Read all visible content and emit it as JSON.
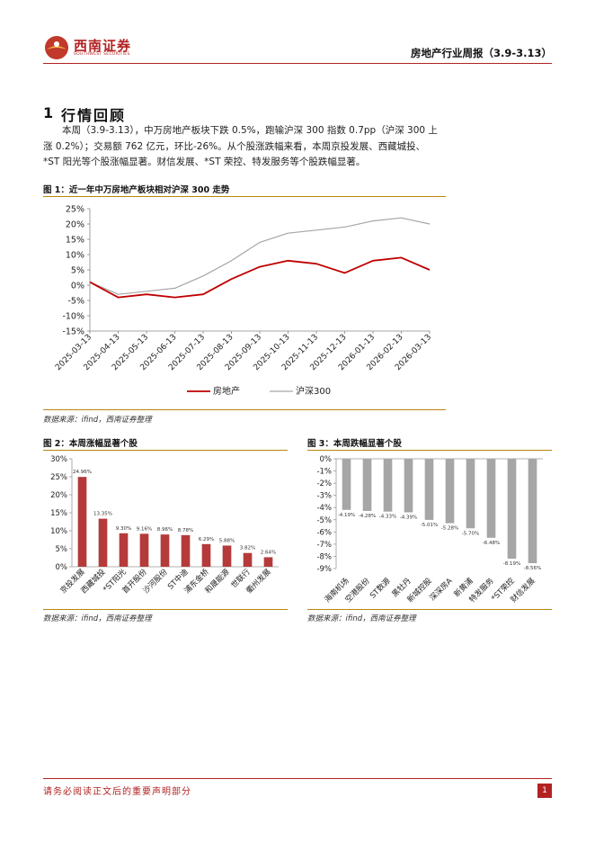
{
  "header": {
    "brand_name": "西南证券",
    "brand_sub": "SOUTHWEST SECURITIES",
    "report_title": "房地产行业周报（3.9-3.13）"
  },
  "section": {
    "number": "1",
    "title": "行情回顾"
  },
  "paragraph": {
    "line1": "本周（3.9-3.13），中万房地产板块下跌 0.5%，跑输沪深 300 指数 0.7pp（沪深 300 上",
    "line2": "涨 0.2%）；交易额 762 亿元，环比-26%。从个股涨跌幅来看，本周京投发展、西藏城投、",
    "line3": "*ST 阳光等个股涨幅显著。财信发展、*ST 荣控、特发服务等个股跌幅显著。"
  },
  "figure1": {
    "title": "图 1：近一年中万房地产板块相对沪深 300 走势",
    "source": "数据来源：ifind，西南证券整理"
  },
  "figure2": {
    "title": "图 2：本周涨幅显著个股",
    "source": "数据来源：ifind，西南证券整理"
  },
  "figure3": {
    "title": "图 3：本周跌幅显著个股",
    "source": "数据来源：ifind，西南证券整理"
  },
  "footer": {
    "disclaimer": "请务必阅读正文后的重要声明部分",
    "page": "1"
  },
  "colors": {
    "brand_red": "#b22222",
    "bar_red": "#b53a3a",
    "bar_grey": "#a6a6a6",
    "line_red": "#c00000",
    "line_grey": "#a6a6a6",
    "rule_gold": "#b8860b"
  },
  "chart_data": [
    {
      "type": "line",
      "x": [
        "2025-03-13",
        "2025-04-13",
        "2025-05-13",
        "2025-06-13",
        "2025-07-13",
        "2025-08-13",
        "2025-09-13",
        "2025-10-13",
        "2025-11-13",
        "2025-12-13",
        "2026-01-13",
        "2026-02-13",
        "2026-03-13"
      ],
      "series": [
        {
          "name": "房地产",
          "values": [
            1,
            -4,
            -3,
            -4,
            -3,
            2,
            6,
            8,
            7,
            4,
            8,
            9,
            5
          ]
        },
        {
          "name": "沪深300",
          "values": [
            1,
            -3,
            -2,
            -1,
            3,
            8,
            14,
            17,
            18,
            19,
            21,
            22,
            20
          ]
        }
      ],
      "yticks": [
        "25%",
        "20%",
        "15%",
        "10%",
        "5%",
        "0%",
        "-5%",
        "-10%",
        "-15%"
      ],
      "ylim": [
        -15,
        25
      ],
      "legend": "bottom",
      "grid": false
    },
    {
      "type": "bar",
      "categories": [
        "京投发展",
        "西藏城投",
        "*ST阳光",
        "首开股份",
        "沙河股份",
        "ST中迪",
        "浦东金桥",
        "和晟能源",
        "世联行",
        "衢州发展"
      ],
      "values": [
        24.96,
        13.35,
        9.3,
        9.16,
        8.96,
        8.78,
        6.29,
        5.88,
        3.82,
        2.64
      ],
      "labels": [
        "24.96%",
        "13.35%",
        "9.30%",
        "9.16%",
        "8.96%",
        "8.78%",
        "6.29%",
        "5.88%",
        "3.82%",
        "2.64%"
      ],
      "yticks": [
        "30%",
        "25%",
        "20%",
        "15%",
        "10%",
        "5%",
        "0%"
      ],
      "ylim": [
        0,
        30
      ]
    },
    {
      "type": "bar",
      "categories": [
        "海南机场",
        "空港股份",
        "ST数源",
        "黑牡丹",
        "新城控股",
        "深深房A",
        "新黄浦",
        "特发服务",
        "*ST荣控",
        "财信发展"
      ],
      "values": [
        -4.19,
        -4.28,
        -4.33,
        -4.39,
        -5.01,
        -5.28,
        -5.7,
        -6.48,
        -8.19,
        -8.56
      ],
      "labels": [
        "-4.19%",
        "-4.28%",
        "-4.33%",
        "-4.39%",
        "-5.01%",
        "-5.28%",
        "-5.70%",
        "-6.48%",
        "-8.19%",
        "-8.56%"
      ],
      "yticks": [
        "0%",
        "-1%",
        "-2%",
        "-3%",
        "-4%",
        "-5%",
        "-6%",
        "-7%",
        "-8%",
        "-9%"
      ],
      "ylim": [
        -9,
        0
      ]
    }
  ]
}
